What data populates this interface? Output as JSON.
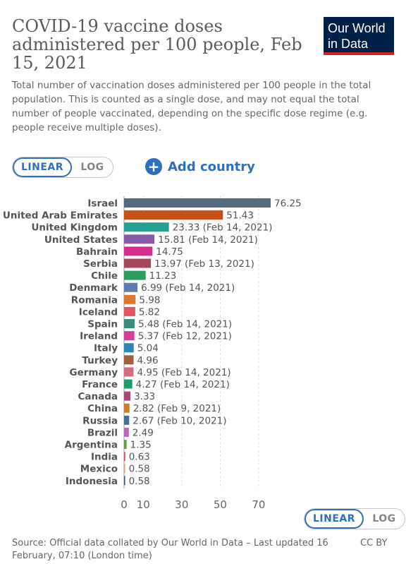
{
  "header": {
    "title": "COVID-19 vaccine doses administered per 100 people, Feb 15, 2021",
    "subtitle": "Total number of vaccination doses administered per 100 people in the total population. This is counted as a single dose, and may not equal the total number of people vaccinated, depending on the specific dose regime (e.g. people receive multiple doses).",
    "logo_line1": "Our World",
    "logo_line2": "in Data"
  },
  "controls": {
    "linear_label": "LINEAR",
    "log_label": "LOG",
    "add_country_label": "Add country",
    "add_icon": "plus-circle-icon"
  },
  "footer": {
    "source": "Source: Official data collated by Our World in Data – Last updated 16 February, 07:10 (London time)",
    "license": "CC BY"
  },
  "chart_data": {
    "type": "bar",
    "orientation": "horizontal",
    "categories": [
      "Israel",
      "United Arab Emirates",
      "United Kingdom",
      "United States",
      "Bahrain",
      "Serbia",
      "Chile",
      "Denmark",
      "Romania",
      "Iceland",
      "Spain",
      "Ireland",
      "Italy",
      "Turkey",
      "Germany",
      "France",
      "Canada",
      "China",
      "Russia",
      "Brazil",
      "Argentina",
      "India",
      "Mexico",
      "Indonesia"
    ],
    "values": [
      76.25,
      51.43,
      23.33,
      15.81,
      14.75,
      13.97,
      11.23,
      6.99,
      5.98,
      5.82,
      5.48,
      5.37,
      5.04,
      4.96,
      4.95,
      4.27,
      3.33,
      2.82,
      2.67,
      2.49,
      1.35,
      0.63,
      0.58,
      0.58
    ],
    "labels": [
      "76.25",
      "51.43",
      "23.33 (Feb 14, 2021)",
      "15.81 (Feb 14, 2021)",
      "14.75",
      "13.97 (Feb 13, 2021)",
      "11.23",
      "6.99 (Feb 14, 2021)",
      "5.98",
      "5.82",
      "5.48 (Feb 14, 2021)",
      "5.37 (Feb 12, 2021)",
      "5.04",
      "4.96",
      "4.95 (Feb 14, 2021)",
      "4.27 (Feb 14, 2021)",
      "3.33",
      "2.82 (Feb 9, 2021)",
      "2.67 (Feb 10, 2021)",
      "2.49",
      "1.35",
      "0.63",
      "0.58",
      "0.58"
    ],
    "colors": [
      "#58687f",
      "#c3531a",
      "#25a194",
      "#885ba8",
      "#d52c8e",
      "#a8445c",
      "#2c9d62",
      "#5f7ab0",
      "#dc7a34",
      "#e05565",
      "#3a8c7c",
      "#d63d9c",
      "#2e87b0",
      "#a0613a",
      "#d66a82",
      "#1f9c6c",
      "#a8497a",
      "#c87d2e",
      "#446e9b",
      "#b969b8",
      "#6a9f4a",
      "#d84a6a",
      "#e0a080",
      "#3a5a7a"
    ],
    "xticks": [
      0,
      10,
      30,
      50,
      70
    ],
    "xlim": [
      0,
      76.25
    ],
    "grid": true,
    "xlabel": "",
    "ylabel": ""
  }
}
